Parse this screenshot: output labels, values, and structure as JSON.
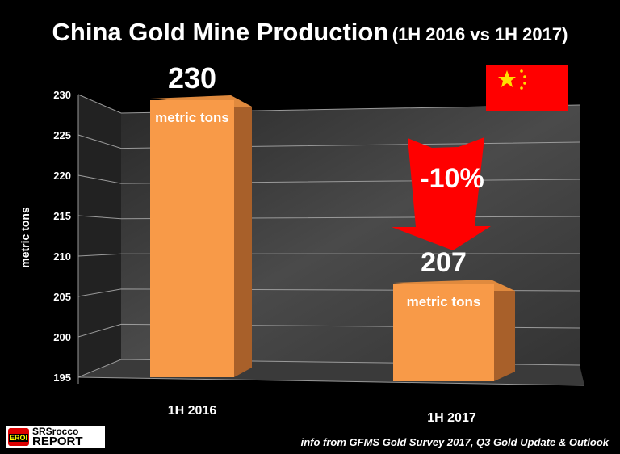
{
  "chart_data": {
    "type": "bar",
    "title": "China Gold Mine Production",
    "subtitle": "(1H 2016 vs 1H 2017)",
    "xlabel": "",
    "ylabel": "metric tons",
    "ylim": [
      195,
      230
    ],
    "yticks": [
      195,
      200,
      205,
      210,
      215,
      220,
      225,
      230
    ],
    "categories": [
      "1H 2016",
      "1H 2017"
    ],
    "values": [
      230,
      207
    ],
    "data_labels": [
      "230",
      "207"
    ],
    "unit_labels": [
      "metric tons",
      "metric tons"
    ],
    "annotation": "-10%",
    "grid": true,
    "bar_color": "#f89a48",
    "arrow_color": "#ff0000"
  },
  "source_note": "info from GFMS Gold Survey 2017, Q3  Gold Update & Outlook",
  "logo": {
    "badge": "EROI",
    "line1": "SRSrocco",
    "line2": "REPORT"
  }
}
